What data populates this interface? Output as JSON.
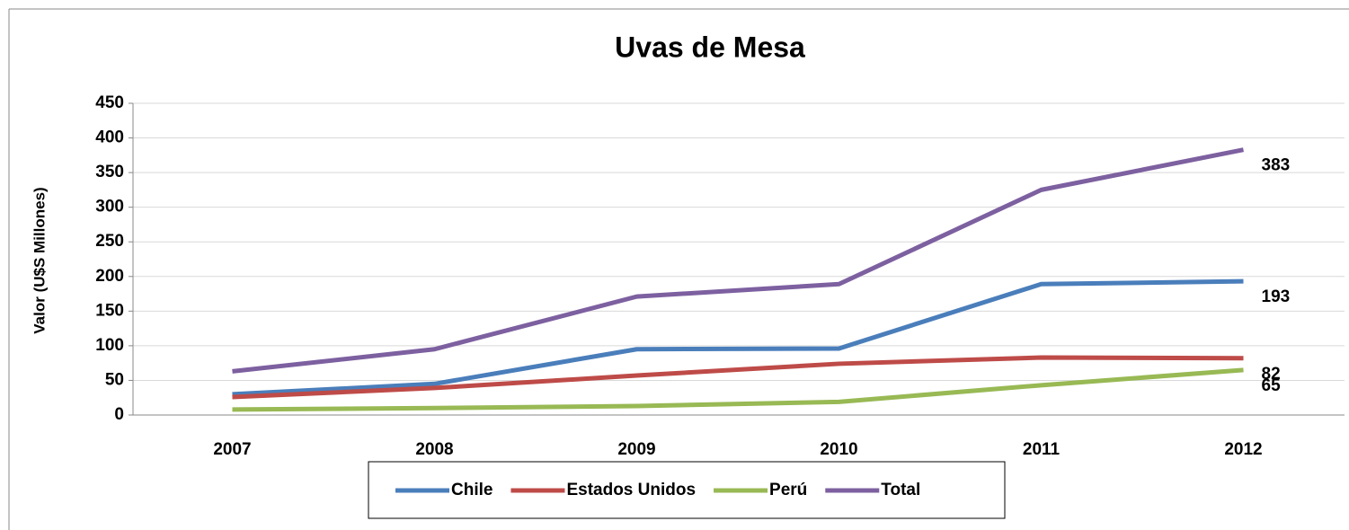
{
  "chart_data": {
    "type": "line",
    "title": "Uvas de Mesa",
    "ylabel": "Valor (U$S Millones)",
    "categories": [
      "2007",
      "2008",
      "2009",
      "2010",
      "2011",
      "2012"
    ],
    "series": [
      {
        "name": "Chile",
        "color": "#4a7ebb",
        "values": [
          30,
          45,
          95,
          96,
          189,
          193
        ]
      },
      {
        "name": "Estados Unidos",
        "color": "#be4b48",
        "values": [
          26,
          39,
          57,
          74,
          83,
          82
        ]
      },
      {
        "name": "Perú",
        "color": "#98b954",
        "values": [
          8,
          10,
          13,
          19,
          43,
          65
        ]
      },
      {
        "name": "Total",
        "color": "#7d60a0",
        "values": [
          63,
          95,
          171,
          189,
          325,
          383
        ]
      }
    ],
    "ylim": [
      0,
      450
    ],
    "yticks": [
      0,
      50,
      100,
      150,
      200,
      250,
      300,
      350,
      400,
      450
    ],
    "grid": true,
    "data_labels": "last",
    "legend": "bottom"
  }
}
